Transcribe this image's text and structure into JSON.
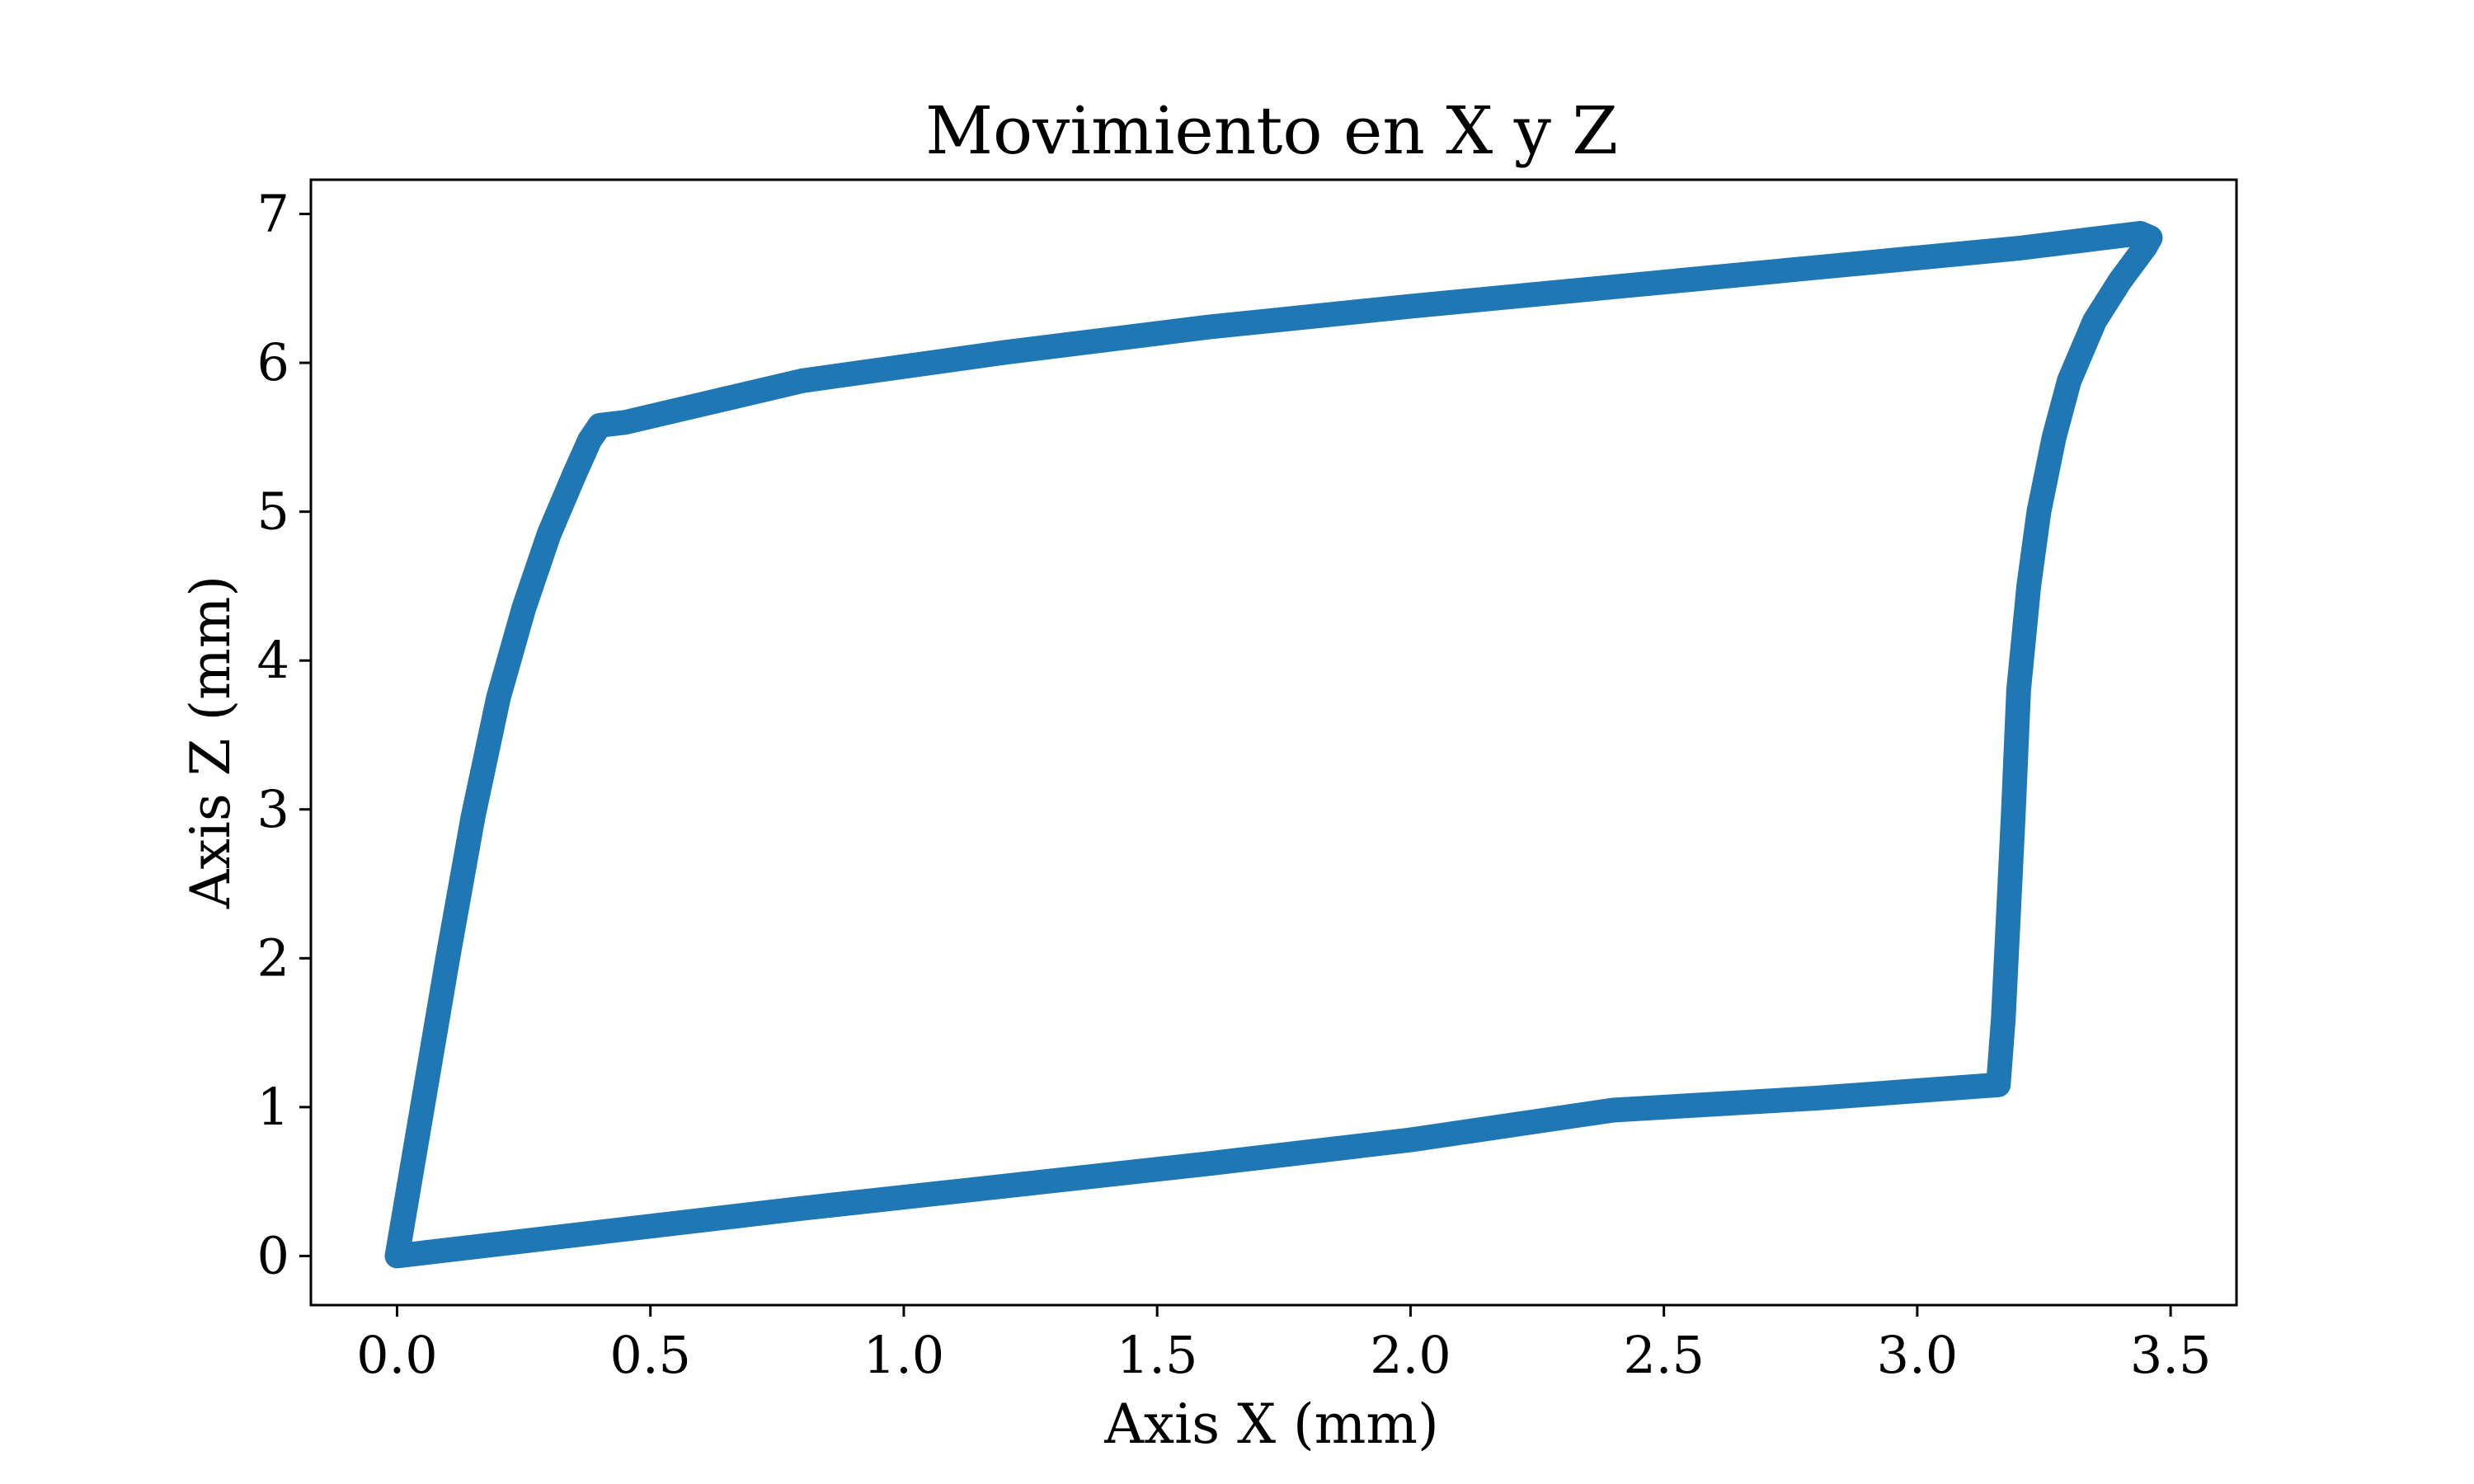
{
  "chart_data": {
    "type": "line",
    "title": "Movimiento en X y Z",
    "xlabel": "Axis X (mm)",
    "ylabel": "Axis Z (mm)",
    "xlim": [
      -0.17,
      3.63
    ],
    "ylim": [
      -0.33,
      7.23
    ],
    "grid": false,
    "legend": "none",
    "x_ticks": [
      {
        "value": 0.0,
        "label": "0.0"
      },
      {
        "value": 0.5,
        "label": "0.5"
      },
      {
        "value": 1.0,
        "label": "1.0"
      },
      {
        "value": 1.5,
        "label": "1.5"
      },
      {
        "value": 2.0,
        "label": "2.0"
      },
      {
        "value": 2.5,
        "label": "2.5"
      },
      {
        "value": 3.0,
        "label": "3.0"
      },
      {
        "value": 3.5,
        "label": "3.5"
      }
    ],
    "y_ticks": [
      {
        "value": 0,
        "label": "0"
      },
      {
        "value": 1,
        "label": "1"
      },
      {
        "value": 2,
        "label": "2"
      },
      {
        "value": 3,
        "label": "3"
      },
      {
        "value": 4,
        "label": "4"
      },
      {
        "value": 5,
        "label": "5"
      },
      {
        "value": 6,
        "label": "6"
      },
      {
        "value": 7,
        "label": "7"
      }
    ],
    "series": [
      {
        "color": "#1f77b4",
        "x": [
          0.0,
          0.05,
          0.1,
          0.15,
          0.2,
          0.25,
          0.3,
          0.35,
          0.38,
          0.4,
          0.45,
          0.8,
          1.2,
          1.6,
          2.0,
          2.4,
          2.8,
          3.2,
          3.44,
          3.46,
          3.45,
          3.4,
          3.35,
          3.3,
          3.27,
          3.24,
          3.22,
          3.2,
          3.19,
          3.18,
          3.17,
          3.16,
          2.8,
          2.4,
          2.0,
          1.6,
          1.2,
          0.8,
          0.4,
          0.0
        ],
        "y": [
          0.0,
          1.0,
          2.0,
          2.95,
          3.75,
          4.35,
          4.85,
          5.25,
          5.48,
          5.58,
          5.6,
          5.88,
          6.07,
          6.24,
          6.38,
          6.51,
          6.64,
          6.77,
          6.87,
          6.84,
          6.78,
          6.55,
          6.28,
          5.88,
          5.5,
          5.0,
          4.5,
          3.8,
          3.0,
          2.3,
          1.6,
          1.15,
          1.06,
          0.98,
          0.78,
          0.62,
          0.47,
          0.32,
          0.16,
          0.0
        ]
      }
    ]
  }
}
